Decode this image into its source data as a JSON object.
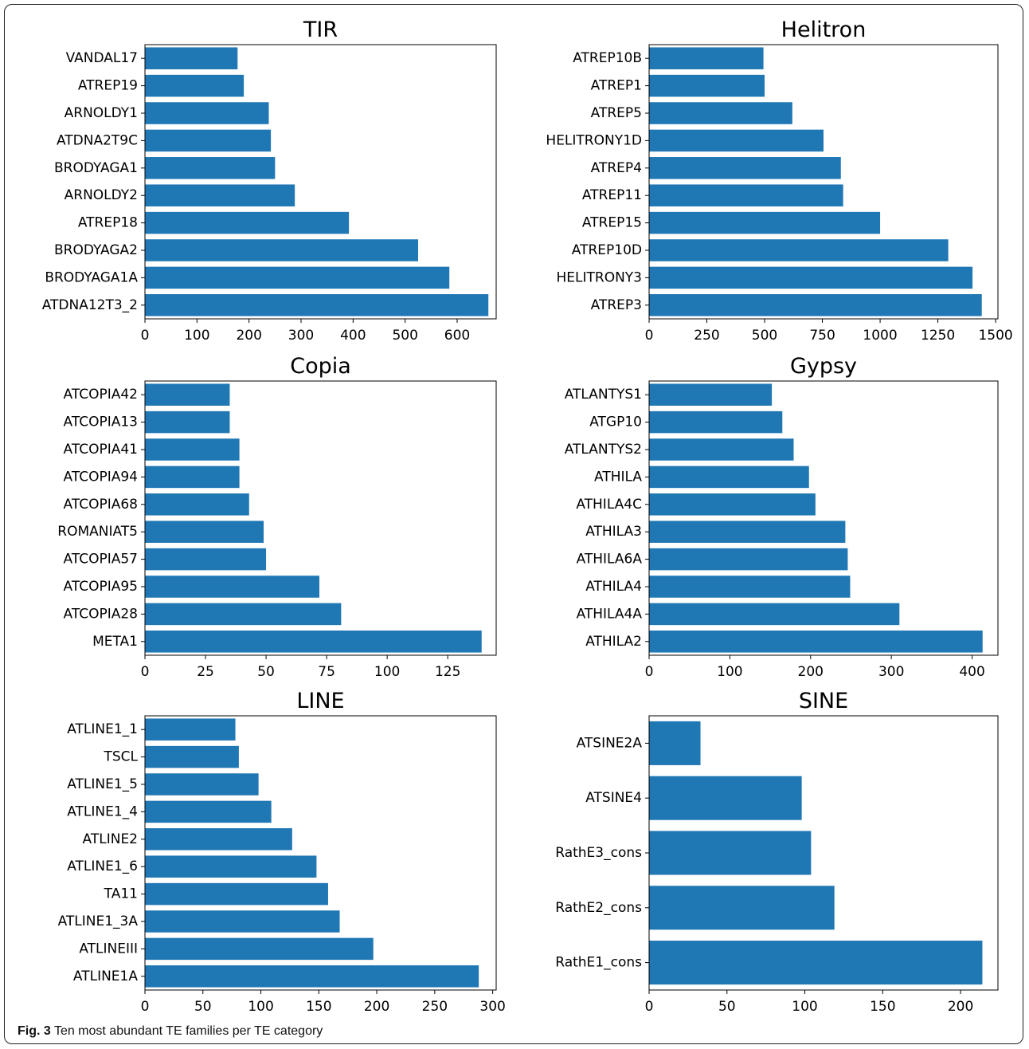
{
  "caption": {
    "label": "Fig. 3",
    "text": "Ten most abundant TE families per TE category"
  },
  "bar_color": "#1f77b4",
  "chart_data": [
    {
      "type": "bar",
      "orientation": "horizontal",
      "title": "TIR",
      "categories": [
        "ATDNA12T3_2",
        "BRODYAGA1A",
        "BRODYAGA2",
        "ATREP18",
        "ARNOLDY2",
        "BRODYAGA1",
        "ATDNA2T9C",
        "ARNOLDY1",
        "ATREP19",
        "VANDAL17"
      ],
      "values": [
        660,
        585,
        525,
        392,
        288,
        250,
        242,
        238,
        190,
        178
      ],
      "xlim": [
        0,
        675
      ],
      "xticks": [
        0,
        100,
        200,
        300,
        400,
        500,
        600
      ]
    },
    {
      "type": "bar",
      "orientation": "horizontal",
      "title": "Helitron",
      "categories": [
        "ATREP3",
        "HELITRONY3",
        "ATREP10D",
        "ATREP15",
        "ATREP11",
        "ATREP4",
        "HELITRONY1D",
        "ATREP5",
        "ATREP1",
        "ATREP10B"
      ],
      "values": [
        1440,
        1400,
        1295,
        1000,
        840,
        830,
        755,
        620,
        500,
        495
      ],
      "xlim": [
        0,
        1510
      ],
      "xticks": [
        0,
        250,
        500,
        750,
        1000,
        1250,
        1500
      ]
    },
    {
      "type": "bar",
      "orientation": "horizontal",
      "title": "Copia",
      "categories": [
        "META1",
        "ATCOPIA28",
        "ATCOPIA95",
        "ATCOPIA57",
        "ROMANIAT5",
        "ATCOPIA68",
        "ATCOPIA94",
        "ATCOPIA41",
        "ATCOPIA13",
        "ATCOPIA42"
      ],
      "values": [
        139,
        81,
        72,
        50,
        49,
        43,
        39,
        39,
        35,
        35
      ],
      "xlim": [
        0,
        145
      ],
      "xticks": [
        0,
        25,
        50,
        75,
        100,
        125
      ]
    },
    {
      "type": "bar",
      "orientation": "horizontal",
      "title": "Gypsy",
      "categories": [
        "ATHILA2",
        "ATHILA4A",
        "ATHILA4",
        "ATHILA6A",
        "ATHILA3",
        "ATHILA4C",
        "ATHILA",
        "ATLANTYS2",
        "ATGP10",
        "ATLANTYS1"
      ],
      "values": [
        413,
        310,
        249,
        246,
        243,
        206,
        198,
        179,
        165,
        152
      ],
      "xlim": [
        0,
        432
      ],
      "xticks": [
        0,
        100,
        200,
        300,
        400
      ]
    },
    {
      "type": "bar",
      "orientation": "horizontal",
      "title": "LINE",
      "categories": [
        "ATLINE1A",
        "ATLINEIII",
        "ATLINE1_3A",
        "TA11",
        "ATLINE1_6",
        "ATLINE2",
        "ATLINE1_4",
        "ATLINE1_5",
        "TSCL",
        "ATLINE1_1"
      ],
      "values": [
        288,
        197,
        168,
        158,
        148,
        127,
        109,
        98,
        81,
        78
      ],
      "xlim": [
        0,
        303
      ],
      "xticks": [
        0,
        50,
        100,
        150,
        200,
        250,
        300
      ]
    },
    {
      "type": "bar",
      "orientation": "horizontal",
      "title": "SINE",
      "categories": [
        "RathE1_cons",
        "RathE2_cons",
        "RathE3_cons",
        "ATSINE4",
        "ATSINE2A"
      ],
      "values": [
        214,
        119,
        104,
        98,
        33
      ],
      "xlim": [
        0,
        224
      ],
      "xticks": [
        0,
        50,
        100,
        150,
        200
      ]
    }
  ]
}
